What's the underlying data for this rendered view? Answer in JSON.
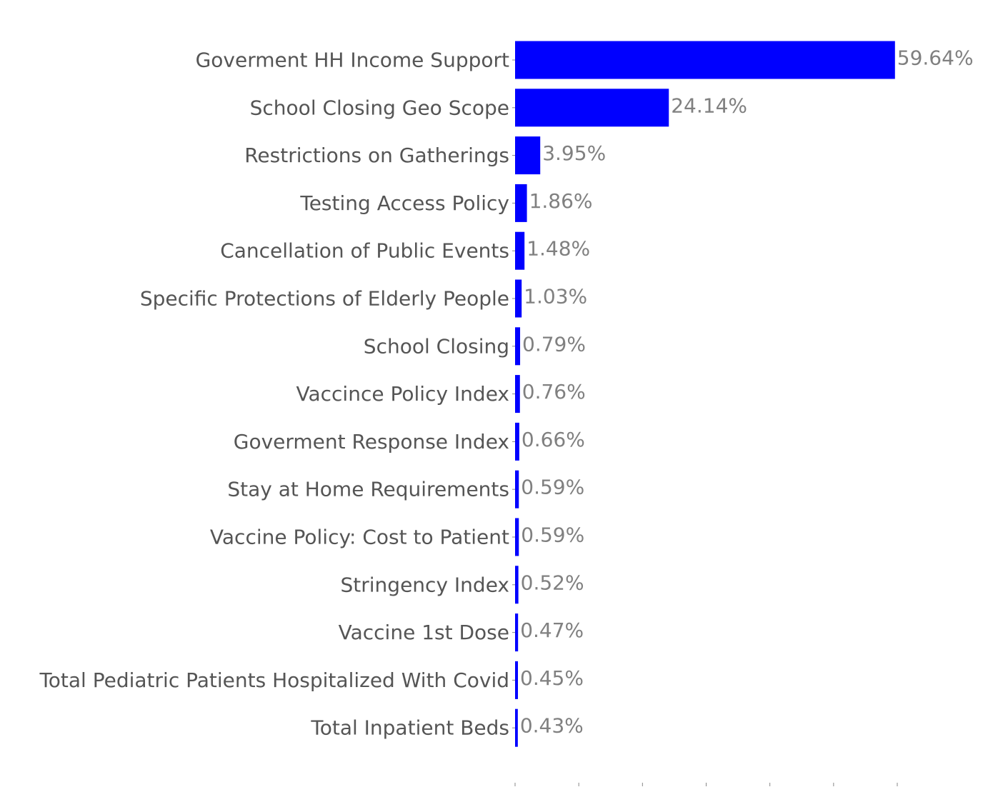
{
  "chart_data": {
    "type": "bar",
    "orientation": "horizontal",
    "categories": [
      "Goverment HH Income Support",
      "School Closing Geo Scope",
      "Restrictions on Gatherings",
      "Testing Access Policy",
      "Cancellation of Public Events",
      "Specific Protections of Elderly People",
      "School Closing",
      "Vaccince Policy Index",
      "Goverment Response Index",
      "Stay at Home Requirements",
      "Vaccine Policy: Cost to Patient",
      "Stringency Index",
      "Vaccine 1st Dose",
      "Total Pediatric Patients Hospitalized With Covid",
      "Total Inpatient Beds"
    ],
    "values": [
      59.64,
      24.14,
      3.95,
      1.86,
      1.48,
      1.03,
      0.79,
      0.76,
      0.66,
      0.59,
      0.59,
      0.52,
      0.47,
      0.45,
      0.43
    ],
    "value_labels": [
      "59.64%",
      "24.14%",
      "3.95%",
      "1.86%",
      "1.48%",
      "1.03%",
      "0.79%",
      "0.76%",
      "0.66%",
      "0.59%",
      "0.59%",
      "0.52%",
      "0.47%",
      "0.45%",
      "0.43%"
    ],
    "title": "",
    "xlabel": "",
    "ylabel": "",
    "xlim": [
      0,
      60
    ],
    "x_ticks": [
      0,
      10,
      20,
      30,
      40,
      50,
      60
    ],
    "x_tick_labels_shown": false,
    "grid": false,
    "legend": "none",
    "bar_color": "#0000ff",
    "category_label_color": "#555555",
    "value_label_color": "#808080",
    "tick_color": "#888888"
  }
}
